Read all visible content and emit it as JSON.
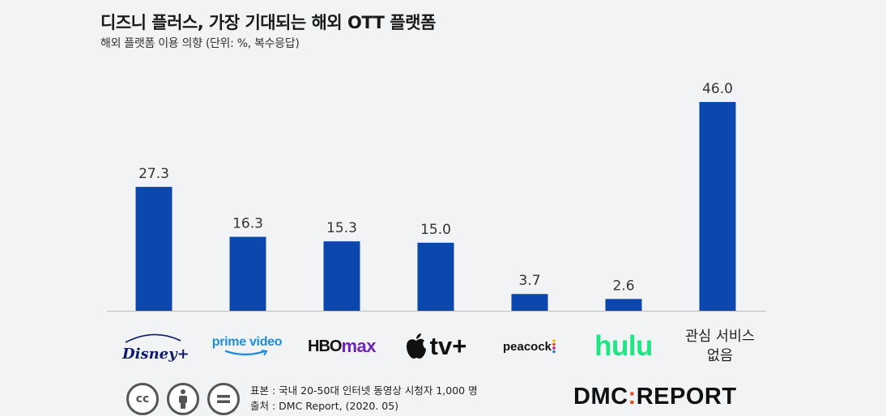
{
  "header": {
    "title": "디즈니 플러스, 가장 기대되는 해외 OTT 플랫폼",
    "subtitle": "해외 플랫폼 이용 의향 (단위: %, 복수응답)"
  },
  "colors": {
    "bar": "#0b47ad",
    "axis": "#bfbfbf"
  },
  "chart_data": {
    "type": "bar",
    "title": "디즈니 플러스, 가장 기대되는 해외 OTT 플랫폼",
    "subtitle": "해외 플랫폼 이용 의향 (단위: %, 복수응답)",
    "categories": [
      "Disney+",
      "prime video",
      "HBO max",
      "Apple tv+",
      "peacock",
      "hulu",
      "관심 서비스 없음"
    ],
    "values": [
      27.3,
      16.3,
      15.3,
      15.0,
      3.7,
      2.6,
      46.0
    ],
    "value_labels": [
      "27.3",
      "16.3",
      "15.3",
      "15.0",
      "3.7",
      "2.6",
      "46.0"
    ],
    "xlabel": "",
    "ylabel": "",
    "ylim": [
      0,
      50
    ],
    "grid": false
  },
  "logos": {
    "disney": "Disney+",
    "prime": "prime video",
    "hbo": "HBO",
    "max": "max",
    "appletv": "tv+",
    "peacock": "peacock",
    "hulu": "hulu",
    "none_line1": "관심 서비스",
    "none_line2": "없음"
  },
  "footer": {
    "license_icons": [
      "cc-icon",
      "attribution-icon",
      "no-derivatives-icon"
    ],
    "cc_text": "cc",
    "sample": "표본 : 국내 20-50대 인터넷 동영상 시청자 1,000 명",
    "source": "출처 : DMC Report, (2020. 05)",
    "brand_left": "DMC",
    "brand_right": "REPORT"
  }
}
